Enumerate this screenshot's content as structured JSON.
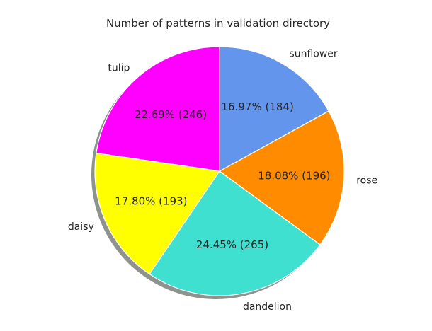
{
  "chart_data": {
    "type": "pie",
    "title": "Number of patterns in validation directory",
    "categories": [
      "tulip",
      "daisy",
      "dandelion",
      "rose",
      "sunflower"
    ],
    "values": [
      246,
      193,
      265,
      196,
      184
    ],
    "percent_labels": [
      "22.69%  (246)",
      "17.80%  (193)",
      "24.45%  (265)",
      "18.08%  (196)",
      "16.97%  (184)"
    ],
    "colors": [
      "#ff00ff",
      "#ffff00",
      "#40e0d0",
      "#ff8c00",
      "#6495ed"
    ],
    "start_angle_deg": 90,
    "direction": "counterclockwise",
    "shadow": true,
    "legend": "none"
  }
}
